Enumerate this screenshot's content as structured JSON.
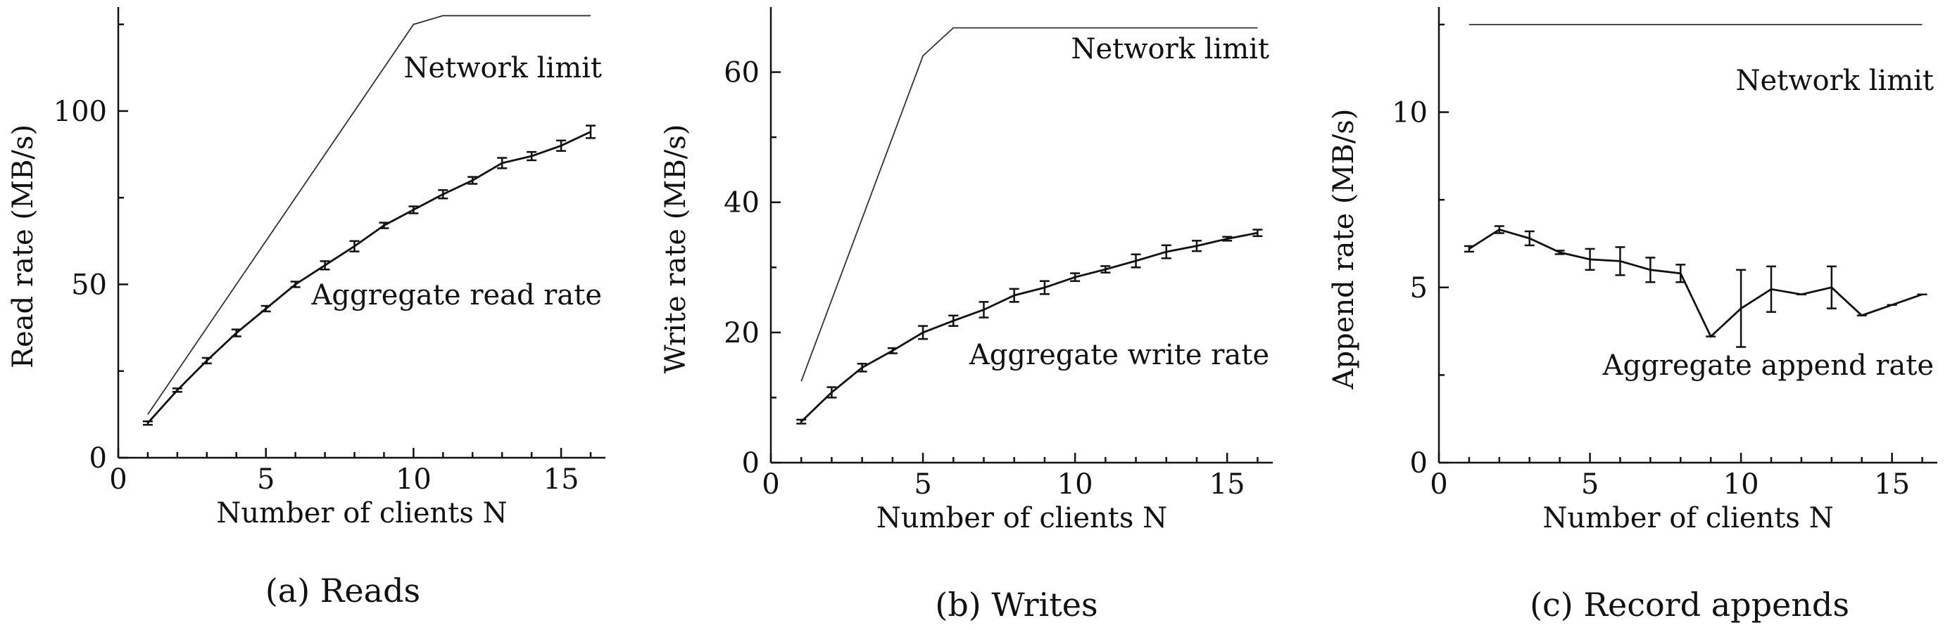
{
  "chart_data": [
    {
      "type": "line",
      "caption": "(a) Reads",
      "xlabel": "Number of clients N",
      "ylabel": "Read rate (MB/s)",
      "xlim": [
        0,
        16.5
      ],
      "ylim": [
        0,
        130
      ],
      "xticks": [
        "0",
        "5",
        "10",
        "15"
      ],
      "yticks": [
        "0",
        "50",
        "100"
      ],
      "grid": false,
      "series": [
        {
          "role": "limit",
          "label": "Network limit",
          "x": [
            1,
            10,
            11,
            16
          ],
          "y": [
            12.5,
            125,
            127.5,
            127.5
          ]
        },
        {
          "role": "data",
          "label": "Aggregate read rate",
          "x": [
            1,
            2,
            3,
            4,
            5,
            6,
            7,
            8,
            9,
            10,
            11,
            12,
            13,
            14,
            15,
            16
          ],
          "y": [
            10,
            19.5,
            28,
            36,
            43,
            50,
            55.5,
            61,
            67,
            71.5,
            76,
            80,
            85,
            87,
            90,
            94
          ],
          "err": [
            0.5,
            0.5,
            0.8,
            1,
            0.8,
            0.8,
            1.2,
            1.5,
            0.8,
            1,
            1.2,
            1,
            1.5,
            1.2,
            1.5,
            1.8
          ]
        }
      ]
    },
    {
      "type": "line",
      "caption": "(b) Writes",
      "xlabel": "Number of clients N",
      "ylabel": "Write rate (MB/s)",
      "xlim": [
        0,
        16.5
      ],
      "ylim": [
        0,
        70
      ],
      "xticks": [
        "0",
        "5",
        "10",
        "15"
      ],
      "yticks": [
        "0",
        "20",
        "40",
        "60"
      ],
      "grid": false,
      "series": [
        {
          "role": "limit",
          "label": "Network limit",
          "x": [
            1,
            5,
            6,
            16
          ],
          "y": [
            12.5,
            62.5,
            66.8,
            66.8
          ]
        },
        {
          "role": "data",
          "label": "Aggregate write rate",
          "x": [
            1,
            2,
            3,
            4,
            5,
            6,
            7,
            8,
            9,
            10,
            11,
            12,
            13,
            14,
            15,
            16
          ],
          "y": [
            6.3,
            10.8,
            14.6,
            17.2,
            20,
            21.8,
            23.5,
            25.7,
            26.9,
            28.5,
            29.7,
            31,
            32.4,
            33.3,
            34.4,
            35.3
          ],
          "err": [
            0.3,
            0.8,
            0.6,
            0.4,
            1,
            0.8,
            1.2,
            1,
            1,
            0.6,
            0.5,
            1,
            1,
            0.8,
            0.3,
            0.5
          ]
        }
      ]
    },
    {
      "type": "line",
      "caption": "(c) Record appends",
      "xlabel": "Number of clients N",
      "ylabel": "Append rate (MB/s)",
      "xlim": [
        0,
        16.5
      ],
      "ylim": [
        0,
        13
      ],
      "xticks": [
        "0",
        "5",
        "10",
        "15"
      ],
      "yticks": [
        "0",
        "5",
        "10"
      ],
      "grid": false,
      "series": [
        {
          "role": "limit",
          "label": "Network limit",
          "x": [
            1,
            16
          ],
          "y": [
            12.5,
            12.5
          ]
        },
        {
          "role": "data",
          "label": "Aggregate append rate",
          "x": [
            1,
            2,
            3,
            4,
            5,
            6,
            7,
            8,
            9,
            10,
            11,
            12,
            13,
            14,
            15,
            16
          ],
          "y": [
            6.1,
            6.65,
            6.4,
            6,
            5.8,
            5.75,
            5.5,
            5.4,
            3.6,
            4.4,
            4.95,
            4.8,
            5,
            4.2,
            4.5,
            4.8
          ],
          "err": [
            0.08,
            0.1,
            0.2,
            0.05,
            0.3,
            0.4,
            0.35,
            0.25,
            0,
            1.1,
            0.65,
            0,
            0.6,
            0,
            0,
            0
          ]
        }
      ]
    }
  ]
}
